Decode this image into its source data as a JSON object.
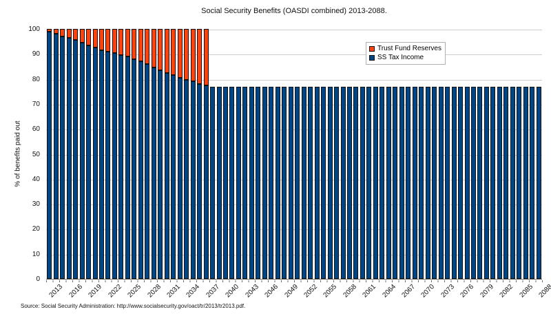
{
  "source": "Source: Social Security Administration: http://www.socialsecurity.gov/oact/tr/2013/tr2013.pdf.",
  "colors": {
    "ss_tax_income": "#004586",
    "trust_fund_reserves": "#ff420e",
    "bar_outline": "#10100f",
    "gridline": "#cccccc",
    "axis": "#6b6b6b"
  },
  "chart_data": {
    "type": "bar",
    "stacked": true,
    "title": "Social Security Benefits (OASDI combined) 2013-2088.",
    "xlabel": "",
    "ylabel": "% of benefits paid out",
    "ylim": [
      0,
      100
    ],
    "ytick_step": 10,
    "xtick_label_step": 3,
    "grid": true,
    "legend": {
      "position": "top-right",
      "entries": [
        "Trust Fund Reserves",
        "SS Tax Income"
      ]
    },
    "categories": [
      2013,
      2014,
      2015,
      2016,
      2017,
      2018,
      2019,
      2020,
      2021,
      2022,
      2023,
      2024,
      2025,
      2026,
      2027,
      2028,
      2029,
      2030,
      2031,
      2032,
      2033,
      2034,
      2035,
      2036,
      2037,
      2038,
      2039,
      2040,
      2041,
      2042,
      2043,
      2044,
      2045,
      2046,
      2047,
      2048,
      2049,
      2050,
      2051,
      2052,
      2053,
      2054,
      2055,
      2056,
      2057,
      2058,
      2059,
      2060,
      2061,
      2062,
      2063,
      2064,
      2065,
      2066,
      2067,
      2068,
      2069,
      2070,
      2071,
      2072,
      2073,
      2074,
      2075,
      2076,
      2077,
      2078,
      2079,
      2080,
      2081,
      2082,
      2083,
      2084,
      2085,
      2086,
      2087,
      2088
    ],
    "series": [
      {
        "name": "SS Tax Income",
        "color": "#004586",
        "values": [
          99,
          98,
          97,
          96.5,
          95.5,
          94.5,
          93.5,
          92.5,
          91.5,
          91,
          90.5,
          89.5,
          89,
          88,
          87,
          86,
          84.5,
          83.5,
          82.5,
          81.5,
          80.5,
          79.5,
          79,
          78,
          77.5,
          77,
          77,
          77,
          77,
          77,
          77,
          77,
          77,
          77,
          77,
          77,
          77,
          77,
          77,
          77,
          77,
          77,
          77,
          77,
          77,
          77,
          77,
          77,
          77,
          77,
          77,
          77,
          77,
          77,
          77,
          77,
          77,
          77,
          77,
          77,
          77,
          77,
          77,
          77,
          77,
          77,
          77,
          77,
          77,
          77,
          77,
          77,
          77,
          77,
          77,
          77
        ]
      },
      {
        "name": "Trust Fund Reserves",
        "color": "#ff420e",
        "values": [
          1,
          2,
          3,
          3.5,
          4.5,
          5.5,
          6.5,
          7.5,
          8.5,
          9,
          9.5,
          10.5,
          11,
          12,
          13,
          14,
          15.5,
          16.5,
          17.5,
          18.5,
          19.5,
          20.5,
          21,
          22,
          22.5,
          0,
          0,
          0,
          0,
          0,
          0,
          0,
          0,
          0,
          0,
          0,
          0,
          0,
          0,
          0,
          0,
          0,
          0,
          0,
          0,
          0,
          0,
          0,
          0,
          0,
          0,
          0,
          0,
          0,
          0,
          0,
          0,
          0,
          0,
          0,
          0,
          0,
          0,
          0,
          0,
          0,
          0,
          0,
          0,
          0,
          0,
          0,
          0,
          0,
          0,
          0
        ]
      }
    ]
  }
}
